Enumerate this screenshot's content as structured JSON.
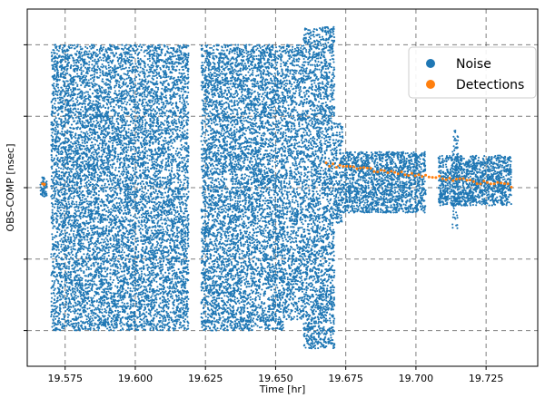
{
  "chart_data": {
    "type": "scatter",
    "title": "",
    "xlabel": "Time [hr]",
    "ylabel": "OBS-COMP [nsec]",
    "xlim": [
      19.5615,
      19.7434
    ],
    "ylim": [
      0,
      1
    ],
    "x_ticks": [
      "19.575",
      "19.600",
      "19.625",
      "19.650",
      "19.675",
      "19.700",
      "19.725"
    ],
    "x_tick_values": [
      19.575,
      19.6,
      19.625,
      19.65,
      19.675,
      19.7,
      19.725
    ],
    "y_tick_values": [
      0.1,
      0.3,
      0.5,
      0.7,
      0.9
    ],
    "grid": true,
    "legend_position": "top-right",
    "colors": {
      "noise": "#1f77b4",
      "detections": "#ff7f0e"
    },
    "series": [
      {
        "name": "Noise",
        "color": "#1f77b4",
        "description_regions": [
          {
            "x": [
              19.566,
              19.5685
            ],
            "y": [
              0.475,
              0.53
            ],
            "density": 60
          },
          {
            "x": [
              19.57,
              19.619
            ],
            "y": [
              0.1,
              0.9
            ],
            "density": 9000
          },
          {
            "x": [
              19.6235,
              19.653
            ],
            "y": [
              0.1,
              0.9
            ],
            "density": 5500
          },
          {
            "x": [
              19.653,
              19.66
            ],
            "y": [
              0.13,
              0.9
            ],
            "density": 1100
          },
          {
            "x": [
              19.66,
              19.671
            ],
            "y": [
              0.05,
              0.95
            ],
            "density": 2200
          },
          {
            "x": [
              19.671,
              19.674
            ],
            "y": [
              0.4,
              0.68
            ],
            "density": 200
          },
          {
            "x": [
              19.674,
              19.7035
            ],
            "y": [
              0.43,
              0.6
            ],
            "density": 1600
          },
          {
            "x": [
              19.708,
              19.734
            ],
            "y": [
              0.45,
              0.59
            ],
            "density": 1300
          },
          {
            "x": [
              19.713,
              19.715
            ],
            "y": [
              0.38,
              0.66
            ],
            "density": 80
          }
        ]
      },
      {
        "name": "Detections",
        "color": "#ff7f0e",
        "description_line": {
          "x": [
            19.668,
            19.734
          ],
          "y_start": 0.565,
          "y_end": 0.505,
          "count": 55
        }
      }
    ],
    "legend": [
      {
        "label": "Noise",
        "color": "#1f77b4"
      },
      {
        "label": "Detections",
        "color": "#ff7f0e"
      }
    ]
  }
}
